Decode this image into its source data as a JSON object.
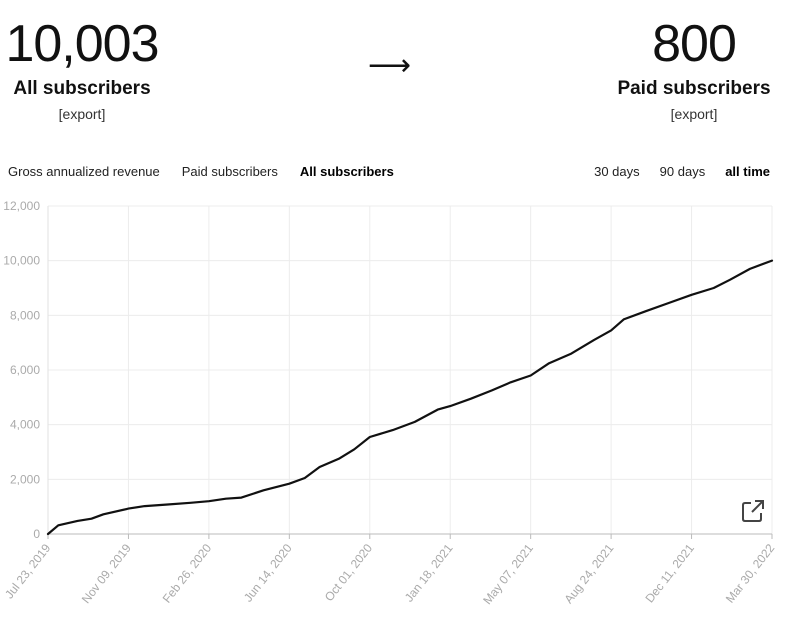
{
  "header": {
    "all_subscribers": {
      "count": "10,003",
      "label": "All subscribers",
      "export": "[export]"
    },
    "arrow": "⟶",
    "paid_subscribers": {
      "count": "800",
      "label": "Paid subscribers",
      "export": "[export]"
    }
  },
  "metric_tabs": [
    {
      "label": "Gross annualized revenue",
      "active": false
    },
    {
      "label": "Paid subscribers",
      "active": false
    },
    {
      "label": "All subscribers",
      "active": true
    }
  ],
  "range_tabs": [
    {
      "label": "30 days",
      "active": false
    },
    {
      "label": "90 days",
      "active": false
    },
    {
      "label": "all time",
      "active": true
    }
  ],
  "icons": {
    "external": "external-link-icon"
  },
  "chart_data": {
    "type": "line",
    "title": "",
    "xlabel": "",
    "ylabel": "",
    "ylim": [
      0,
      12000
    ],
    "yticks": [
      0,
      2000,
      4000,
      6000,
      8000,
      10000,
      12000
    ],
    "ytick_labels": [
      "0",
      "2,000",
      "4,000",
      "6,000",
      "8,000",
      "10,000",
      "12,000"
    ],
    "xticks": [
      "Jul 23, 2019",
      "Nov 09, 2019",
      "Feb 26, 2020",
      "Jun 14, 2020",
      "Oct 01, 2020",
      "Jan 18, 2021",
      "May 07, 2021",
      "Aug 24, 2021",
      "Dec 11, 2021",
      "Mar 30, 2022"
    ],
    "grid": true,
    "line_color": "#111111",
    "series": [
      {
        "x": [
          "Jul 23, 2019",
          "Aug 06, 2019",
          "Sep 01, 2019",
          "Sep 20, 2019",
          "Oct 06, 2019",
          "Nov 09, 2019",
          "Dec 01, 2019",
          "Jan 01, 2020",
          "Feb 01, 2020",
          "Feb 26, 2020",
          "Mar 20, 2020",
          "Apr 10, 2020",
          "May 10, 2020",
          "Jun 14, 2020",
          "Jul 05, 2020",
          "Jul 25, 2020",
          "Aug 20, 2020",
          "Sep 10, 2020",
          "Oct 01, 2020",
          "Nov 01, 2020",
          "Dec 01, 2020",
          "Jan 01, 2021",
          "Jan 18, 2021",
          "Feb 15, 2021",
          "Mar 15, 2021",
          "Apr 10, 2021",
          "May 07, 2021",
          "Jun 01, 2021",
          "Jul 01, 2021",
          "Aug 01, 2021",
          "Aug 24, 2021",
          "Sep 10, 2021",
          "Oct 10, 2021",
          "Nov 10, 2021",
          "Dec 11, 2021",
          "Jan 10, 2022",
          "Feb 01, 2022",
          "Feb 28, 2022",
          "Mar 30, 2022"
        ],
        "y": [
          0,
          320,
          480,
          560,
          720,
          930,
          1020,
          1080,
          1140,
          1200,
          1290,
          1330,
          1600,
          1840,
          2050,
          2450,
          2750,
          3100,
          3550,
          3800,
          4100,
          4550,
          4680,
          4950,
          5250,
          5550,
          5800,
          6250,
          6600,
          7100,
          7450,
          7850,
          8150,
          8450,
          8750,
          9000,
          9300,
          9700,
          10003
        ]
      }
    ]
  }
}
